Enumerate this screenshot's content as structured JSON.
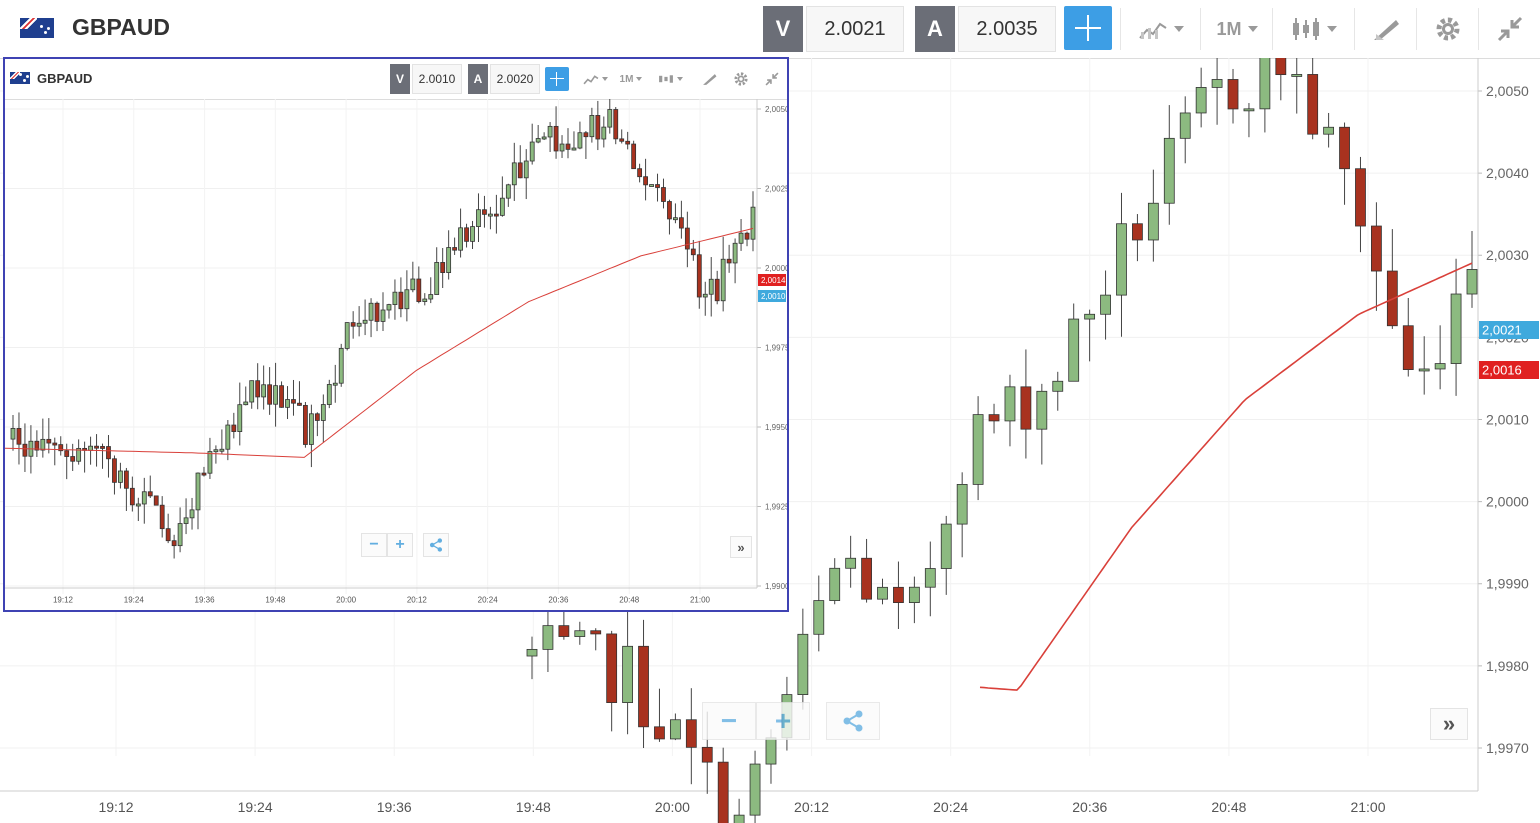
{
  "main": {
    "symbol": "GBPAUD",
    "sell_label": "V",
    "sell_value": "2.0021",
    "buy_label": "A",
    "buy_value": "2.0035",
    "timeframe": "1M",
    "zoom_out": "−",
    "zoom_in": "+",
    "expand": "»",
    "price_ticks": [
      "2,0050",
      "2,0040",
      "2,0030",
      "2,0020",
      "2,0010",
      "2,0000",
      "1,9990",
      "1,9980",
      "1,9970"
    ],
    "time_ticks": [
      "19:12",
      "19:24",
      "19:36",
      "19:48",
      "20:00",
      "20:12",
      "20:24",
      "20:36",
      "20:48",
      "21:00"
    ],
    "sell_tag": "2,0021",
    "ma_tag": "2,0016"
  },
  "inset": {
    "symbol": "GBPAUD",
    "sell_label": "V",
    "sell_value": "2.0010",
    "buy_label": "A",
    "buy_value": "2.0020",
    "timeframe": "1M",
    "zoom_out": "−",
    "zoom_in": "+",
    "expand": "»",
    "price_ticks": [
      "2,0050",
      "2,0025",
      "2,0000",
      "1,9975",
      "1,9950",
      "1,9925",
      "1,9900"
    ],
    "time_ticks": [
      "19:12",
      "19:24",
      "19:36",
      "19:48",
      "20:00",
      "20:12",
      "20:24",
      "20:36",
      "20:48",
      "21:00"
    ],
    "sell_tag": "2,0010",
    "ma_tag": "2,0014"
  },
  "colors": {
    "up": "#8cba80",
    "down": "#a8321f",
    "ma": "#d9403a",
    "accent": "#3d9ee5",
    "frame": "#3f43b3",
    "ma_tag": "#e02020",
    "sell_tag": "#3fa9dd"
  },
  "icons": [
    "flag-gb-au-icon",
    "crosshair-icon",
    "line-chart-icon",
    "candles-icon",
    "draw-tool-icon",
    "gear-icon",
    "collapse-icon",
    "share-icon"
  ]
}
